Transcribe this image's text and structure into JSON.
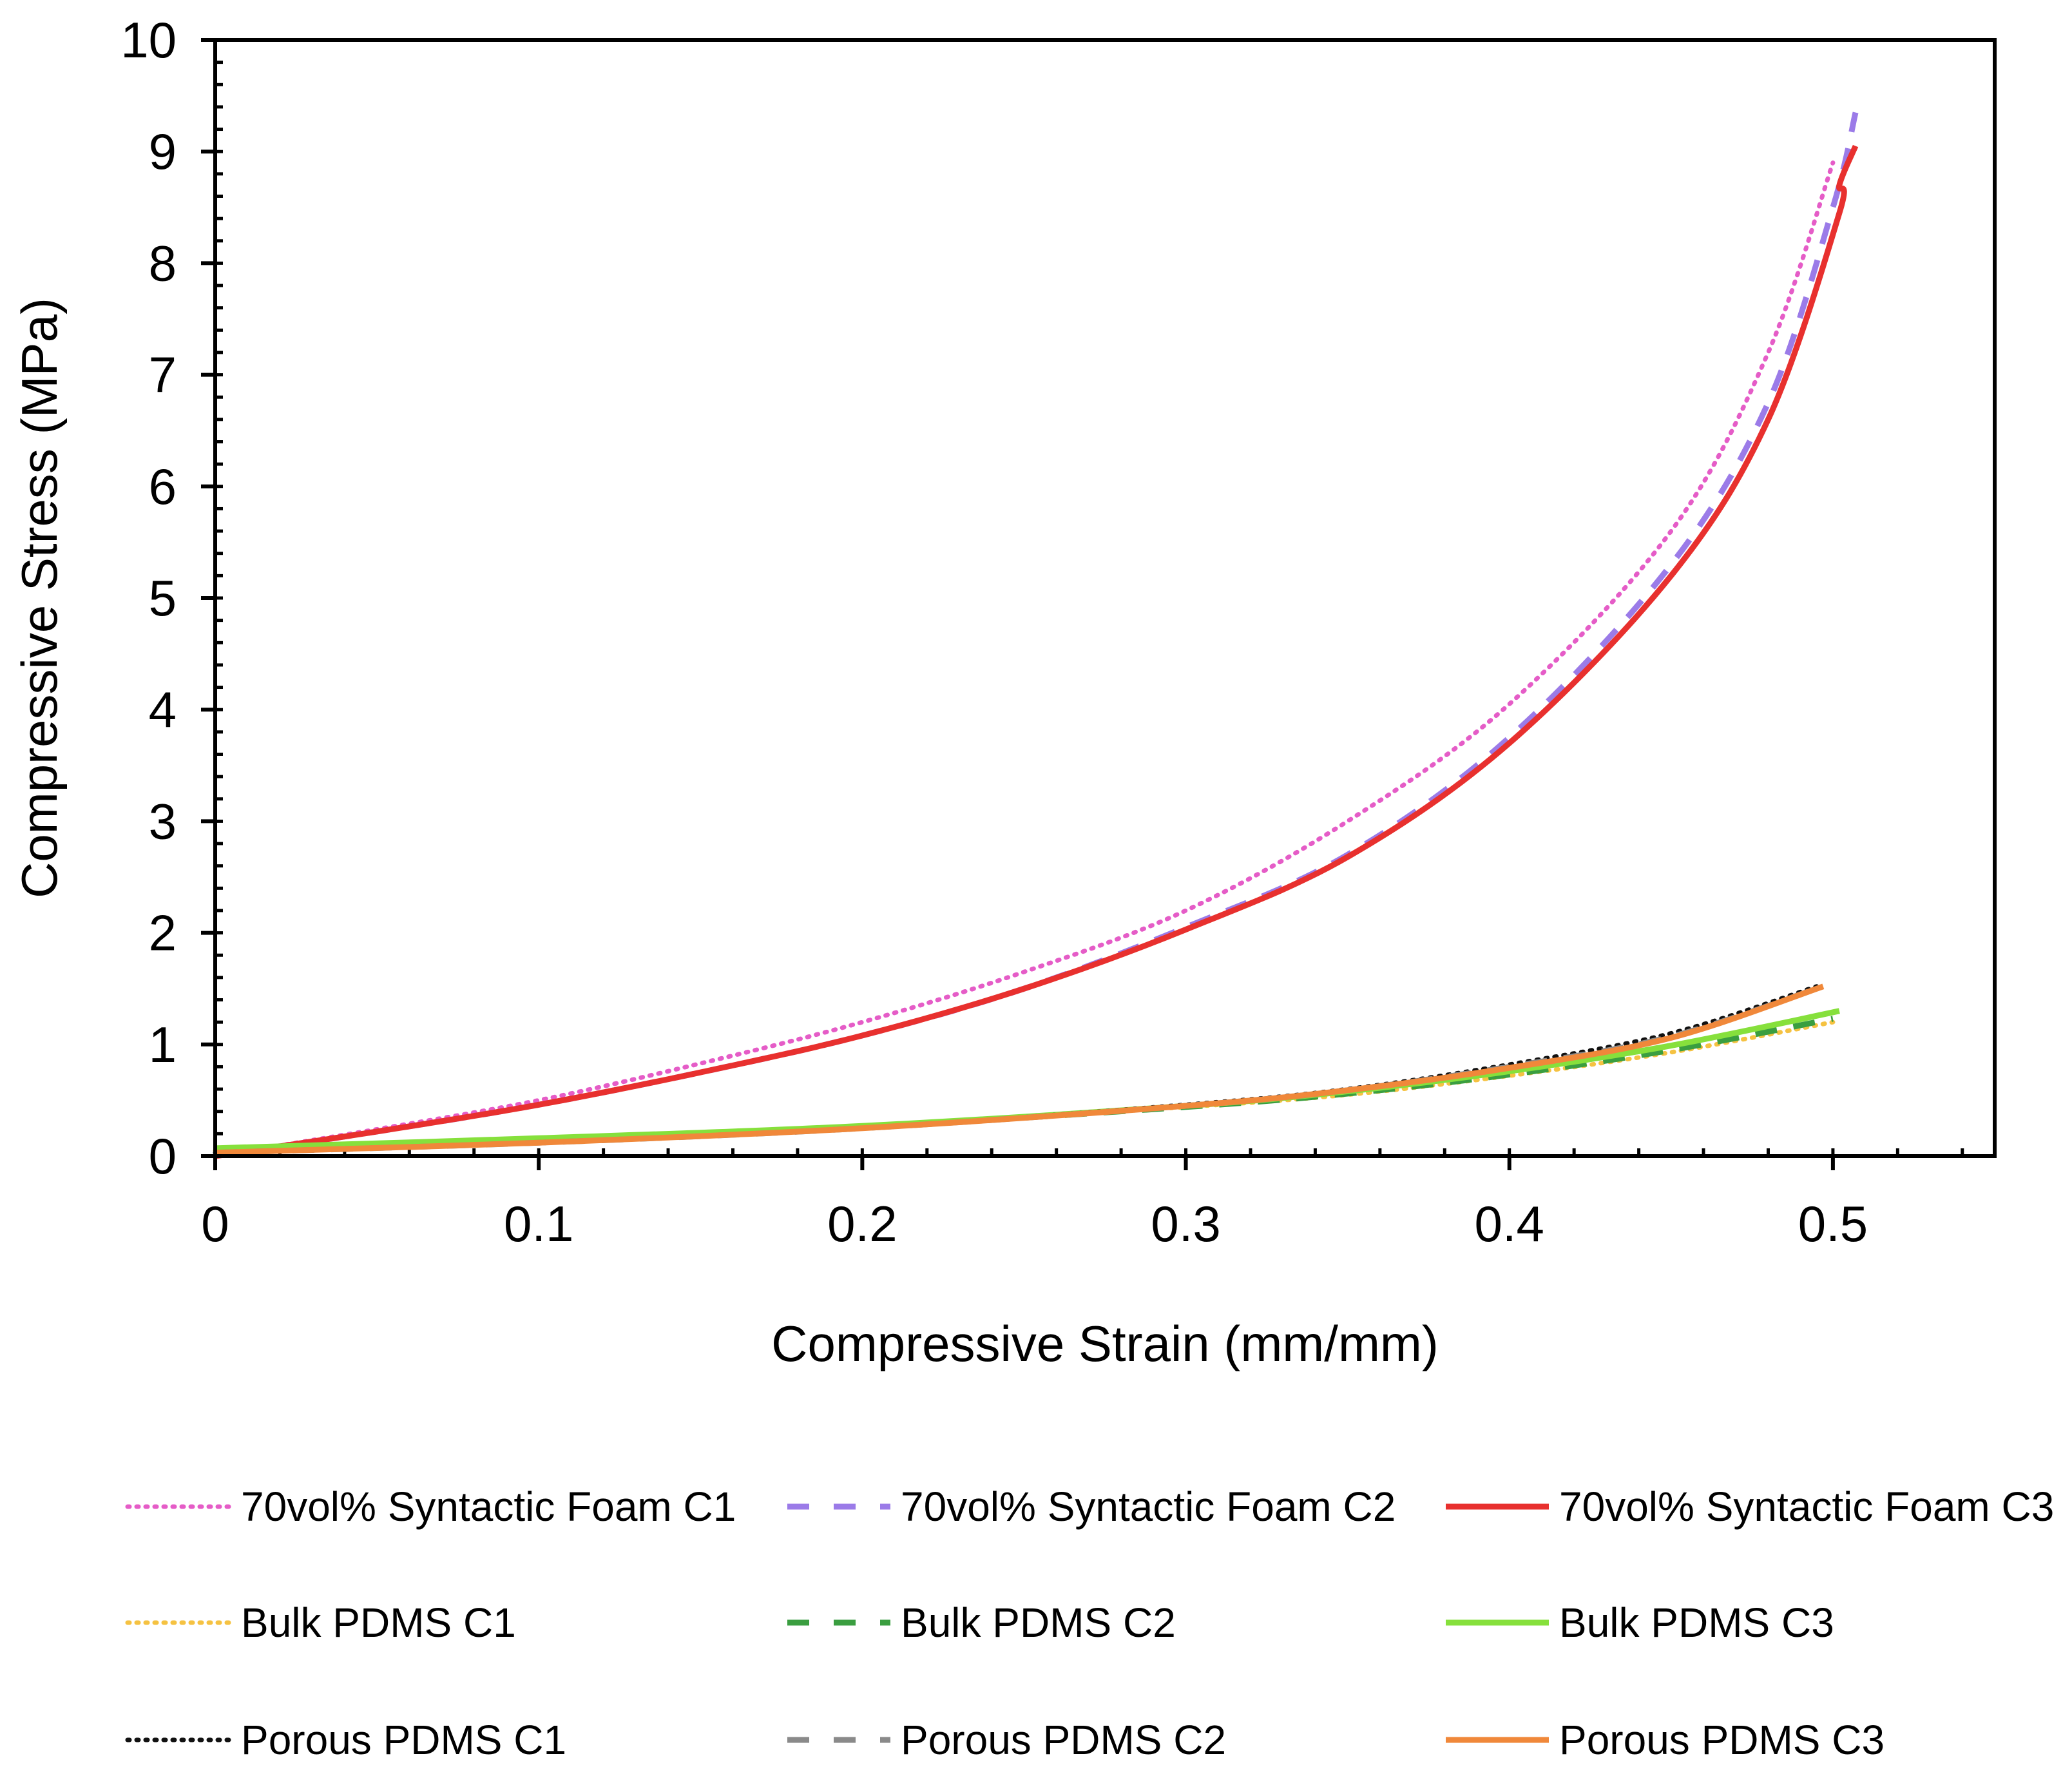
{
  "chart_data": {
    "type": "line",
    "title": "",
    "xlabel": "Compressive Strain (mm/mm)",
    "ylabel": "Compressive Stress (MPa)",
    "xlim": [
      0,
      0.55
    ],
    "ylim": [
      0,
      10
    ],
    "xticks": [
      0,
      0.1,
      0.2,
      0.3,
      0.4,
      0.5
    ],
    "xtick_labels": [
      "0",
      "0.1",
      "0.2",
      "0.3",
      "0.4",
      "0.5"
    ],
    "yticks": [
      0,
      1,
      2,
      3,
      4,
      5,
      6,
      7,
      8,
      9,
      10
    ],
    "ytick_labels": [
      "0",
      "1",
      "2",
      "3",
      "4",
      "5",
      "6",
      "7",
      "8",
      "9",
      "10"
    ],
    "x_minor_step": 0.02,
    "y_minor_step": 0.2,
    "grid": false,
    "legend_position": "bottom",
    "series": [
      {
        "name": "70vol% Syntactic Foam C1",
        "color": "#e55cc7",
        "style": "dotted",
        "x": [
          0,
          0.05,
          0.1,
          0.15,
          0.2,
          0.25,
          0.3,
          0.35,
          0.4,
          0.45,
          0.48,
          0.5
        ],
        "y": [
          0,
          0.24,
          0.5,
          0.83,
          1.2,
          1.65,
          2.2,
          3.0,
          4.05,
          5.6,
          7.2,
          8.9
        ]
      },
      {
        "name": "70vol% Syntactic Foam C2",
        "color": "#9b7be8",
        "style": "dashed",
        "x": [
          0,
          0.05,
          0.1,
          0.15,
          0.2,
          0.25,
          0.3,
          0.35,
          0.4,
          0.45,
          0.48,
          0.5,
          0.507
        ],
        "y": [
          0,
          0.22,
          0.46,
          0.75,
          1.08,
          1.5,
          2.05,
          2.7,
          3.75,
          5.3,
          6.75,
          8.5,
          9.35
        ]
      },
      {
        "name": "70vol% Syntactic Foam C3",
        "color": "#e8302e",
        "style": "solid",
        "x": [
          0,
          0.05,
          0.1,
          0.15,
          0.2,
          0.25,
          0.3,
          0.35,
          0.4,
          0.45,
          0.48,
          0.502,
          0.502,
          0.507
        ],
        "y": [
          0,
          0.22,
          0.46,
          0.75,
          1.08,
          1.5,
          2.03,
          2.68,
          3.7,
          5.2,
          6.6,
          8.45,
          8.7,
          9.05
        ]
      },
      {
        "name": "Bulk PDMS C1",
        "color": "#f5c242",
        "style": "dotted",
        "x": [
          0,
          0.1,
          0.2,
          0.3,
          0.35,
          0.4,
          0.45,
          0.5
        ],
        "y": [
          0.05,
          0.14,
          0.26,
          0.44,
          0.55,
          0.72,
          0.93,
          1.2
        ]
      },
      {
        "name": "Bulk PDMS C2",
        "color": "#3a9e40",
        "style": "dashed",
        "x": [
          0,
          0.1,
          0.2,
          0.3,
          0.35,
          0.4,
          0.45,
          0.5
        ],
        "y": [
          0.05,
          0.14,
          0.26,
          0.44,
          0.56,
          0.73,
          0.95,
          1.23
        ]
      },
      {
        "name": "Bulk PDMS C3",
        "color": "#86e03c",
        "style": "solid",
        "x": [
          0,
          0.1,
          0.2,
          0.3,
          0.35,
          0.4,
          0.45,
          0.502
        ],
        "y": [
          0.07,
          0.16,
          0.27,
          0.45,
          0.58,
          0.76,
          0.99,
          1.3
        ]
      },
      {
        "name": "Porous PDMS C1",
        "color": "#111111",
        "style": "dotted",
        "x": [
          0,
          0.1,
          0.2,
          0.3,
          0.35,
          0.4,
          0.45,
          0.495
        ],
        "y": [
          0.03,
          0.12,
          0.25,
          0.46,
          0.6,
          0.82,
          1.1,
          1.52
        ]
      },
      {
        "name": "Porous PDMS C2",
        "color": "#8a8a8a",
        "style": "dashed",
        "x": [
          0,
          0.1,
          0.2,
          0.3,
          0.35,
          0.4,
          0.45,
          0.497
        ],
        "y": [
          0.03,
          0.12,
          0.25,
          0.45,
          0.59,
          0.8,
          1.07,
          1.52
        ]
      },
      {
        "name": "Porous PDMS C3",
        "color": "#f0883a",
        "style": "solid",
        "x": [
          0,
          0.1,
          0.2,
          0.3,
          0.35,
          0.4,
          0.45,
          0.497
        ],
        "y": [
          0.03,
          0.12,
          0.25,
          0.45,
          0.59,
          0.79,
          1.06,
          1.52
        ]
      }
    ]
  }
}
